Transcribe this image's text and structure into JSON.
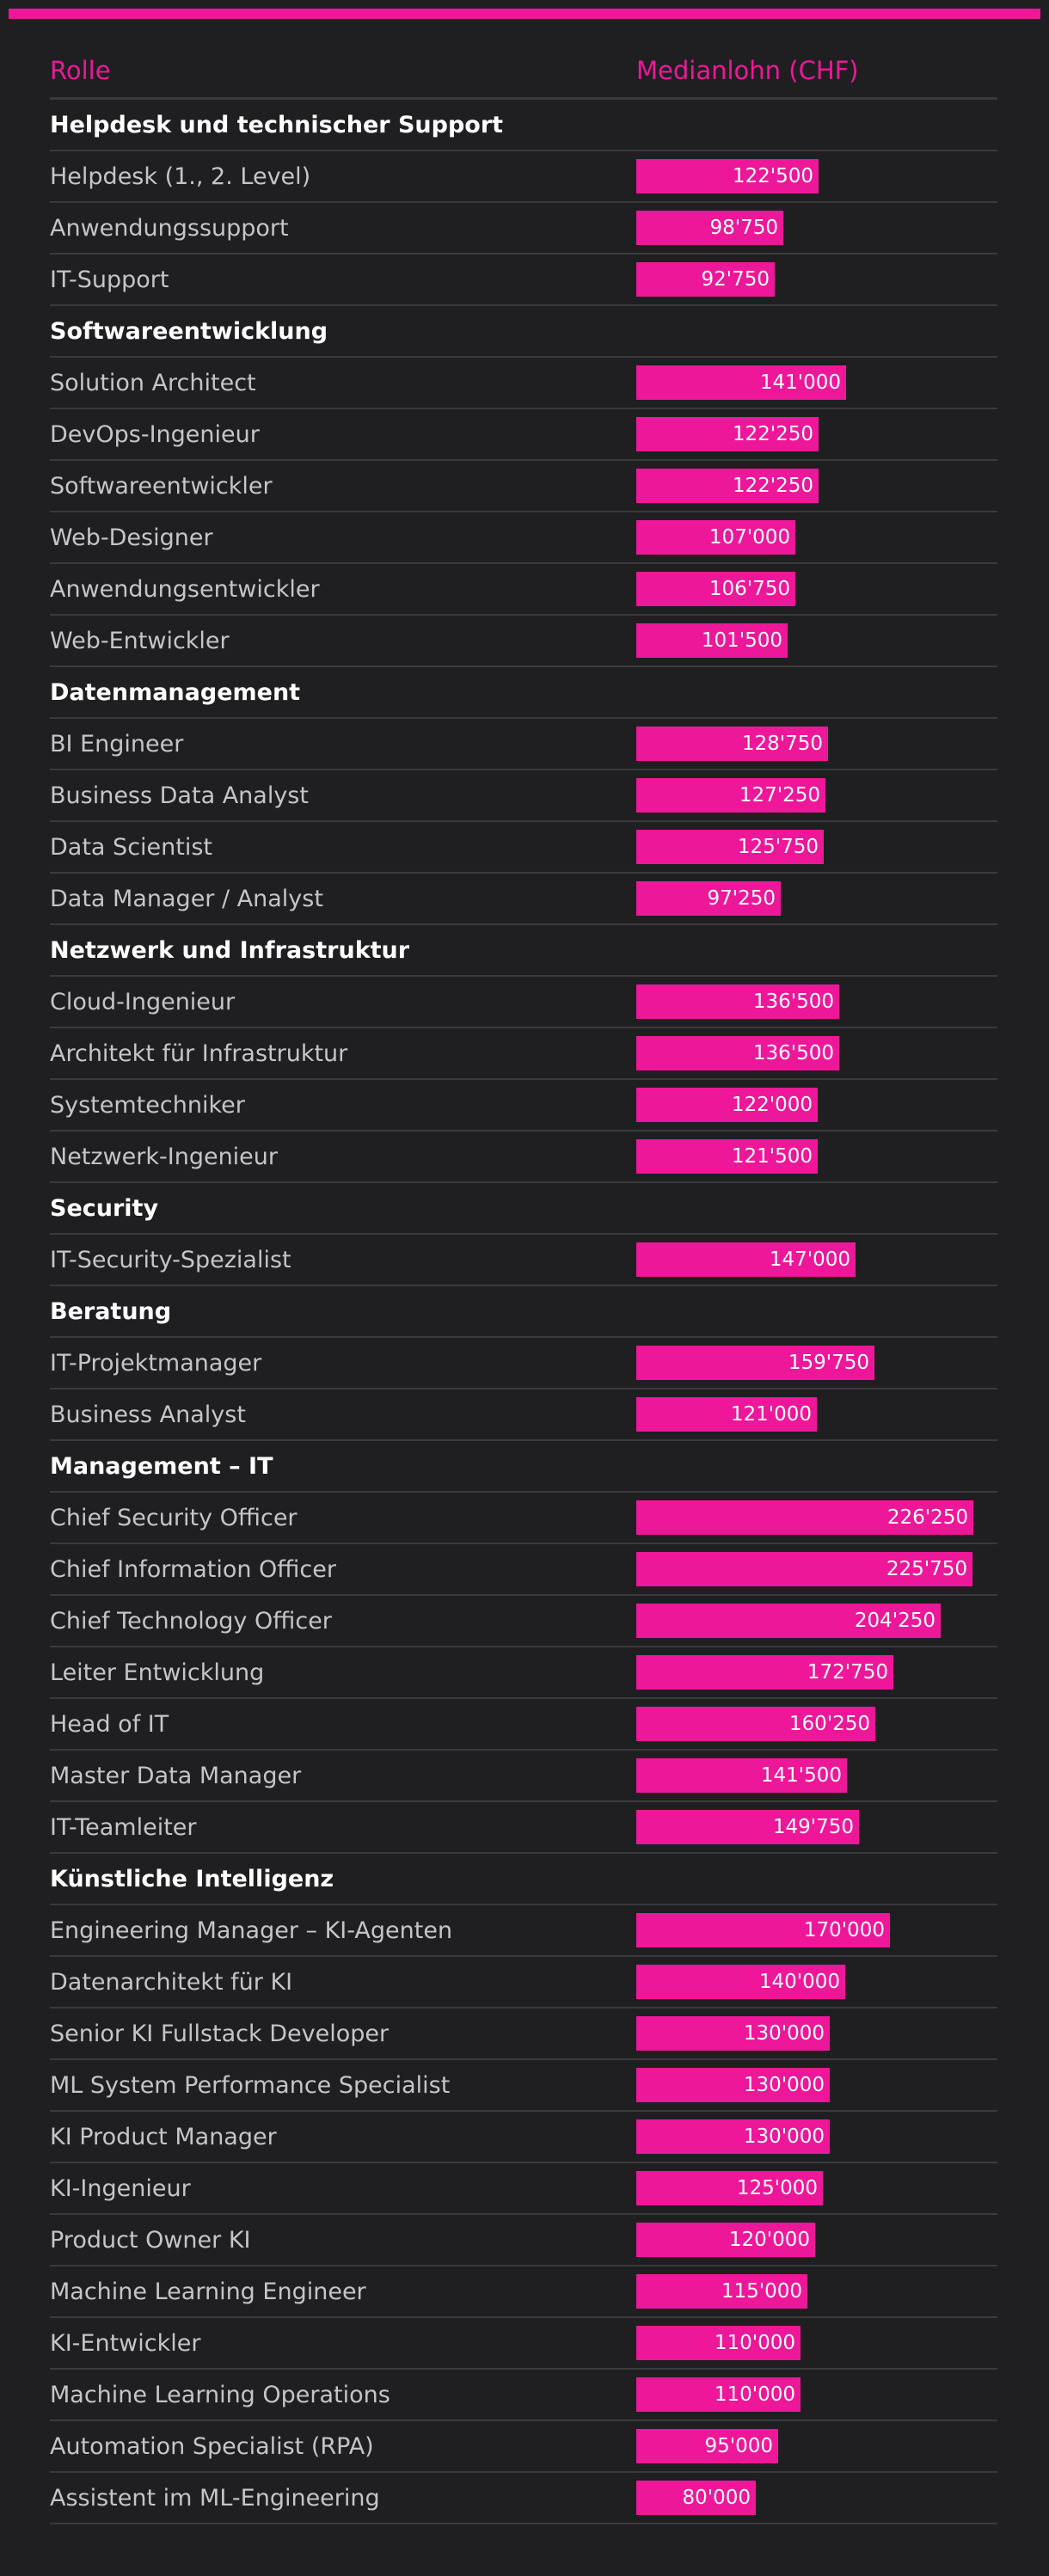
{
  "accent_color": "#ee1799",
  "chart_data": {
    "type": "bar",
    "orientation": "horizontal",
    "columns": [
      "Rolle",
      "Medianlohn (CHF)"
    ],
    "value_format": "thousands separator '",
    "max_scale_value": 226250,
    "groups": [
      {
        "category": "Helpdesk und technischer Support",
        "items": [
          {
            "role": "Helpdesk (1., 2. Level)",
            "value": 122500,
            "label": "122'500"
          },
          {
            "role": "Anwendungssupport",
            "value": 98750,
            "label": "98'750"
          },
          {
            "role": "IT-Support",
            "value": 92750,
            "label": "92'750"
          }
        ]
      },
      {
        "category": "Softwareentwicklung",
        "items": [
          {
            "role": "Solution Architect",
            "value": 141000,
            "label": "141'000"
          },
          {
            "role": "DevOps-Ingenieur",
            "value": 122250,
            "label": "122'250"
          },
          {
            "role": "Softwareentwickler",
            "value": 122250,
            "label": "122'250"
          },
          {
            "role": "Web-Designer",
            "value": 107000,
            "label": "107'000"
          },
          {
            "role": "Anwendungsentwickler",
            "value": 106750,
            "label": "106'750"
          },
          {
            "role": "Web-Entwickler",
            "value": 101500,
            "label": "101'500"
          }
        ]
      },
      {
        "category": "Datenmanagement",
        "items": [
          {
            "role": "BI Engineer",
            "value": 128750,
            "label": "128'750"
          },
          {
            "role": "Business Data Analyst",
            "value": 127250,
            "label": "127'250"
          },
          {
            "role": "Data Scientist",
            "value": 125750,
            "label": "125'750"
          },
          {
            "role": "Data Manager / Analyst",
            "value": 97250,
            "label": "97'250"
          }
        ]
      },
      {
        "category": "Netzwerk und Infrastruktur",
        "items": [
          {
            "role": "Cloud-Ingenieur",
            "value": 136500,
            "label": "136'500"
          },
          {
            "role": "Architekt für Infrastruktur",
            "value": 136500,
            "label": "136'500"
          },
          {
            "role": "Systemtechniker",
            "value": 122000,
            "label": "122'000"
          },
          {
            "role": "Netzwerk-Ingenieur",
            "value": 121500,
            "label": "121'500"
          }
        ]
      },
      {
        "category": "Security",
        "items": [
          {
            "role": "IT-Security-Spezialist",
            "value": 147000,
            "label": "147'000"
          }
        ]
      },
      {
        "category": "Beratung",
        "items": [
          {
            "role": "IT-Projektmanager",
            "value": 159750,
            "label": "159'750"
          },
          {
            "role": "Business Analyst",
            "value": 121000,
            "label": "121'000"
          }
        ]
      },
      {
        "category": "Management – IT",
        "items": [
          {
            "role": "Chief Security Officer",
            "value": 226250,
            "label": "226'250"
          },
          {
            "role": "Chief Information Officer",
            "value": 225750,
            "label": "225'750"
          },
          {
            "role": "Chief Technology Officer",
            "value": 204250,
            "label": "204'250"
          },
          {
            "role": "Leiter Entwicklung",
            "value": 172750,
            "label": "172'750"
          },
          {
            "role": "Head of IT",
            "value": 160250,
            "label": "160'250"
          },
          {
            "role": "Master Data Manager",
            "value": 141500,
            "label": "141'500"
          },
          {
            "role": "IT-Teamleiter",
            "value": 149750,
            "label": "149'750"
          }
        ]
      },
      {
        "category": "Künstliche Intelligenz",
        "items": [
          {
            "role": "Engineering Manager – KI-Agenten",
            "value": 170000,
            "label": "170'000"
          },
          {
            "role": "Datenarchitekt für KI",
            "value": 140000,
            "label": "140'000"
          },
          {
            "role": "Senior KI Fullstack Developer",
            "value": 130000,
            "label": "130'000"
          },
          {
            "role": "ML System Performance Specialist",
            "value": 130000,
            "label": "130'000"
          },
          {
            "role": "KI Product Manager",
            "value": 130000,
            "label": "130'000"
          },
          {
            "role": "KI-Ingenieur",
            "value": 125000,
            "label": "125'000"
          },
          {
            "role": "Product Owner KI",
            "value": 120000,
            "label": "120'000"
          },
          {
            "role": "Machine Learning Engineer",
            "value": 115000,
            "label": "115'000"
          },
          {
            "role": "KI-Entwickler",
            "value": 110000,
            "label": "110'000"
          },
          {
            "role": "Machine Learning Operations",
            "value": 110000,
            "label": "110'000"
          },
          {
            "role": "Automation Specialist (RPA)",
            "value": 95000,
            "label": "95'000"
          },
          {
            "role": "Assistent im ML-Engineering",
            "value": 80000,
            "label": "80'000"
          }
        ]
      }
    ]
  }
}
